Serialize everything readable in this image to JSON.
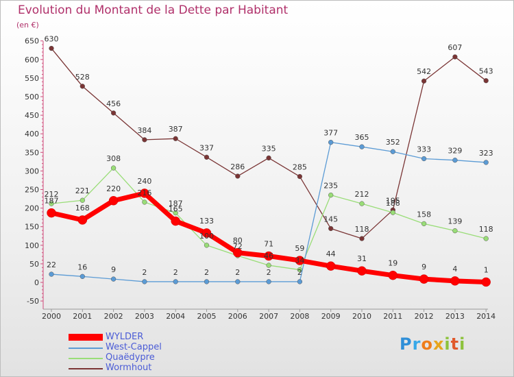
{
  "title": "Evolution du Montant de la Dette par Habitant",
  "unit": "(en €)",
  "logo": "Proxiti",
  "chart_data": {
    "type": "line",
    "title": "Evolution du Montant de la Dette par Habitant",
    "ylabel": "(en €)",
    "xlabel": "",
    "ylim": [
      -50,
      650
    ],
    "yticks": [
      -50,
      0,
      50,
      100,
      150,
      200,
      250,
      300,
      350,
      400,
      450,
      500,
      550,
      600,
      650
    ],
    "x": [
      "2000",
      "2001",
      "2002",
      "2003",
      "2004",
      "2005",
      "2006",
      "2007",
      "2008",
      "2009",
      "2010",
      "2011",
      "2012",
      "2013",
      "2014"
    ],
    "grid": false,
    "legend_position": "bottom-left",
    "series": [
      {
        "name": "WYLDER",
        "color": "#ff0000",
        "values": [
          187,
          168,
          220,
          240,
          165,
          133,
          80,
          71,
          59,
          44,
          31,
          19,
          9,
          4,
          1
        ]
      },
      {
        "name": "West-Cappel",
        "color": "#5b9bd5",
        "values": [
          22,
          16,
          9,
          2,
          2,
          2,
          2,
          2,
          2,
          377,
          365,
          352,
          333,
          329,
          323
        ]
      },
      {
        "name": "Quaëdypre",
        "color": "#99dd77",
        "values": [
          212,
          221,
          308,
          216,
          187,
          100,
          72,
          46,
          34,
          235,
          212,
          188,
          158,
          139,
          118
        ]
      },
      {
        "name": "Wormhout",
        "color": "#7a3535",
        "values": [
          630,
          528,
          456,
          384,
          387,
          337,
          286,
          335,
          285,
          145,
          118,
          195,
          542,
          607,
          543
        ]
      }
    ]
  }
}
